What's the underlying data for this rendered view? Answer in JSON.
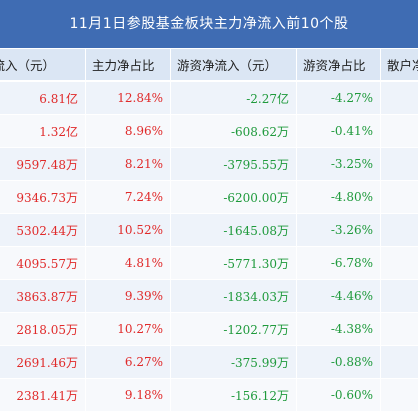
{
  "title": "11月1日参股基金板块主力净流入前10个股",
  "headers": {
    "main_inflow": "净流入（元）",
    "main_ratio": "主力净占比",
    "hot_inflow": "游资净流入（元）",
    "hot_ratio": "游资净占比",
    "retail": "散户净"
  },
  "colors": {
    "title_bg": "#3f6cb3",
    "header_bg": "#dbe6f4",
    "positive": "#e02a2a",
    "negative": "#1f9a3c"
  },
  "rows": [
    {
      "main_inflow": "6.81亿",
      "main_ratio": "12.84%",
      "hot_inflow": "-2.27亿",
      "hot_ratio": "-4.27%"
    },
    {
      "main_inflow": "1.32亿",
      "main_ratio": "8.96%",
      "hot_inflow": "-608.62万",
      "hot_ratio": "-0.41%"
    },
    {
      "main_inflow": "9597.48万",
      "main_ratio": "8.21%",
      "hot_inflow": "-3795.55万",
      "hot_ratio": "-3.25%"
    },
    {
      "main_inflow": "9346.73万",
      "main_ratio": "7.24%",
      "hot_inflow": "-6200.00万",
      "hot_ratio": "-4.80%"
    },
    {
      "main_inflow": "5302.44万",
      "main_ratio": "10.52%",
      "hot_inflow": "-1645.08万",
      "hot_ratio": "-3.26%"
    },
    {
      "main_inflow": "4095.57万",
      "main_ratio": "4.81%",
      "hot_inflow": "-5771.30万",
      "hot_ratio": "-6.78%"
    },
    {
      "main_inflow": "3863.87万",
      "main_ratio": "9.39%",
      "hot_inflow": "-1834.03万",
      "hot_ratio": "-4.46%"
    },
    {
      "main_inflow": "2818.05万",
      "main_ratio": "10.27%",
      "hot_inflow": "-1202.77万",
      "hot_ratio": "-4.38%"
    },
    {
      "main_inflow": "2691.46万",
      "main_ratio": "6.27%",
      "hot_inflow": "-375.99万",
      "hot_ratio": "-0.88%"
    },
    {
      "main_inflow": "2381.41万",
      "main_ratio": "9.18%",
      "hot_inflow": "-156.12万",
      "hot_ratio": "-0.60%"
    }
  ]
}
